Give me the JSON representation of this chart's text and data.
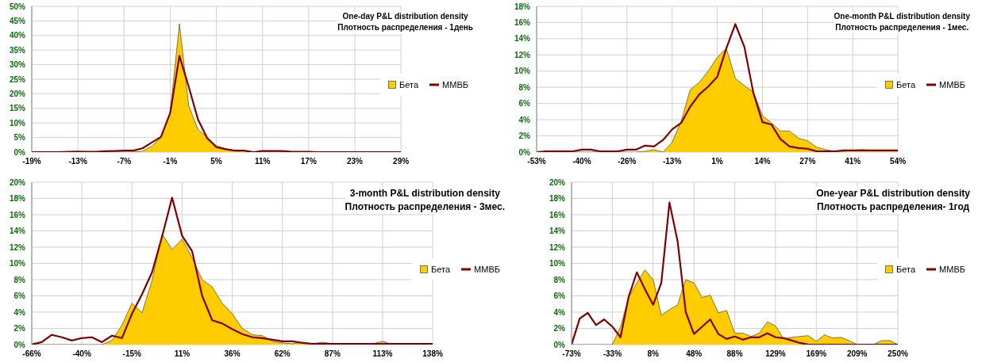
{
  "chart_data": [
    {
      "type": "area",
      "title": "One-day P&L distribution density",
      "subtitle": "Плотность распределения - 1день",
      "categories": [
        "-19%",
        null,
        null,
        null,
        null,
        "-13%",
        null,
        null,
        null,
        null,
        "-7%",
        null,
        null,
        null,
        null,
        "-1%",
        null,
        null,
        null,
        null,
        "5%",
        null,
        null,
        null,
        null,
        "11%",
        null,
        null,
        null,
        null,
        "17%",
        null,
        null,
        null,
        null,
        "23%",
        null,
        null,
        null,
        null,
        "29%"
      ],
      "series": [
        {
          "name": "Бета",
          "type": "area",
          "color": "#ffcc00",
          "values": [
            0,
            0,
            0,
            0,
            0,
            0,
            0,
            0,
            0,
            0,
            0,
            0,
            0.3,
            2,
            5,
            13.5,
            44,
            16,
            7.8,
            5,
            2.2,
            1.2,
            0.5,
            0.5,
            0,
            0,
            0,
            0,
            0,
            0,
            0,
            0,
            0,
            0,
            0,
            0,
            0,
            0,
            0,
            0,
            0
          ]
        },
        {
          "name": "ММВБ",
          "type": "line",
          "color": "#800000",
          "values": [
            0,
            0,
            0,
            0,
            0.1,
            0.2,
            0.1,
            0.1,
            0.3,
            0.4,
            0.5,
            0.5,
            1.3,
            3.3,
            5.2,
            13.5,
            33,
            22.5,
            11.3,
            4.8,
            1.7,
            1,
            0.5,
            0.5,
            0,
            0.4,
            0.4,
            0.4,
            0.2,
            0.1,
            0.1,
            0,
            0,
            0,
            0,
            0,
            0,
            0,
            0,
            0,
            0
          ]
        }
      ],
      "ylim": [
        0,
        50
      ],
      "yticks": [
        {
          "value": 0,
          "label": "0%"
        },
        {
          "value": 5,
          "label": "5%"
        },
        {
          "value": 10,
          "label": "10%"
        },
        {
          "value": 15,
          "label": "15%"
        },
        {
          "value": 20,
          "label": "20%"
        },
        {
          "value": 25,
          "label": "25%"
        },
        {
          "value": 30,
          "label": "30%"
        },
        {
          "value": 35,
          "label": "35%"
        },
        {
          "value": 40,
          "label": "40%"
        },
        {
          "value": 45,
          "label": "45%"
        },
        {
          "value": 50,
          "label": "50%"
        }
      ],
      "grid": true,
      "legend": "right"
    },
    {
      "type": "area",
      "title": "One-month P&L distribution density",
      "subtitle": "Плотность распределения  - 1мес.",
      "categories": [
        "-53%",
        null,
        null,
        null,
        null,
        "-40%",
        null,
        null,
        null,
        null,
        "-26%",
        null,
        null,
        null,
        null,
        "-13%",
        null,
        null,
        null,
        null,
        "1%",
        null,
        null,
        null,
        null,
        "14%",
        null,
        null,
        null,
        null,
        "27%",
        null,
        null,
        null,
        null,
        "41%",
        null,
        null,
        null,
        null,
        "54%"
      ],
      "series": [
        {
          "name": "Бета",
          "type": "area",
          "color": "#ffcc00",
          "values": [
            0,
            0,
            0,
            0,
            0,
            0,
            0,
            0,
            0,
            0,
            0,
            0,
            0.1,
            0.3,
            0,
            1.2,
            3.8,
            7.7,
            8.6,
            10,
            11.7,
            12.8,
            9.1,
            8.2,
            7.4,
            4.5,
            3.6,
            2.6,
            2.6,
            1.7,
            1.4,
            0.6,
            0.3,
            0.1,
            0.1,
            0.2,
            0.3,
            0.2,
            0.2,
            0.2,
            0.2
          ]
        },
        {
          "name": "ММВБ",
          "type": "line",
          "color": "#800000",
          "values": [
            0,
            0.1,
            0.1,
            0.1,
            0.1,
            0.3,
            0.3,
            0.1,
            0.1,
            0.1,
            0.3,
            0.3,
            0.8,
            0.7,
            1.5,
            2.8,
            3.6,
            5.6,
            7.1,
            8.1,
            9.3,
            12.8,
            15.8,
            13,
            7.3,
            3.7,
            3.4,
            1.6,
            0.7,
            0.5,
            0.4,
            0.1,
            0.1,
            0.1,
            0.2,
            0.2,
            0.2,
            0.2,
            0.2,
            0.2,
            0.2
          ]
        }
      ],
      "ylim": [
        0,
        18
      ],
      "yticks": [
        {
          "value": 0,
          "label": "0%"
        },
        {
          "value": 2,
          "label": "2%"
        },
        {
          "value": 4,
          "label": "4%"
        },
        {
          "value": 6,
          "label": "6%"
        },
        {
          "value": 8,
          "label": "8%"
        },
        {
          "value": 10,
          "label": "10%"
        },
        {
          "value": 12,
          "label": "12%"
        },
        {
          "value": 14,
          "label": "14%"
        },
        {
          "value": 16,
          "label": "16%"
        },
        {
          "value": 18,
          "label": "18%"
        }
      ],
      "grid": true,
      "legend": "right"
    },
    {
      "type": "area",
      "title": "3-month P&L distribution density",
      "subtitle": "Плотность распределения  - 3мес.",
      "categories": [
        "-66%",
        null,
        null,
        null,
        null,
        "-40%",
        null,
        null,
        null,
        null,
        "-15%",
        null,
        null,
        null,
        null,
        "11%",
        null,
        null,
        null,
        null,
        "36%",
        null,
        null,
        null,
        null,
        "62%",
        null,
        null,
        null,
        null,
        "87%",
        null,
        null,
        null,
        null,
        "113%",
        null,
        null,
        null,
        null,
        "138%"
      ],
      "series": [
        {
          "name": "Бета",
          "type": "area",
          "color": "#ffcc00",
          "values": [
            0,
            0,
            0,
            0,
            0,
            0,
            0,
            0,
            0.5,
            2.4,
            5.1,
            3.9,
            7.9,
            13.6,
            11.7,
            13,
            10.7,
            8,
            7.1,
            5.1,
            3.8,
            2,
            1.2,
            1.1,
            0.4,
            0.2,
            0.1,
            0.3,
            0.1,
            0.3,
            0.1,
            0,
            0,
            0,
            0.1,
            0.4,
            0,
            0,
            0,
            0,
            0
          ]
        },
        {
          "name": "ММВБ",
          "type": "line",
          "color": "#800000",
          "values": [
            0,
            0.3,
            1.2,
            0.9,
            0.5,
            0.8,
            0.9,
            0.3,
            1.1,
            0.8,
            3.8,
            6.2,
            8.9,
            13.3,
            18.1,
            13.4,
            11.5,
            6,
            3,
            2.6,
            1.9,
            1.3,
            0.9,
            0.8,
            0.6,
            0.4,
            0.4,
            0.2,
            0.1,
            0.1,
            0.1,
            0.1,
            0.1,
            0.1,
            0.1,
            0.1,
            0.1,
            0.1,
            0.1,
            0.1,
            0.1
          ]
        }
      ],
      "ylim": [
        0,
        20
      ],
      "yticks": [
        {
          "value": 0,
          "label": "0%"
        },
        {
          "value": 2,
          "label": "2%"
        },
        {
          "value": 4,
          "label": "4%"
        },
        {
          "value": 6,
          "label": "6%"
        },
        {
          "value": 8,
          "label": "8%"
        },
        {
          "value": 10,
          "label": "10%"
        },
        {
          "value": 12,
          "label": "12%"
        },
        {
          "value": 14,
          "label": "14%"
        },
        {
          "value": 16,
          "label": "16%"
        },
        {
          "value": 18,
          "label": "18%"
        },
        {
          "value": 20,
          "label": "20%"
        }
      ],
      "grid": true,
      "legend": "right"
    },
    {
      "type": "area",
      "title": "One-year P&L distribution density",
      "subtitle": "Плотность распределения- 1год",
      "categories": [
        "-73%",
        null,
        null,
        null,
        null,
        "-33%",
        null,
        null,
        null,
        null,
        "8%",
        null,
        null,
        null,
        null,
        "48%",
        null,
        null,
        null,
        null,
        "88%",
        null,
        null,
        null,
        null,
        "129%",
        null,
        null,
        null,
        null,
        "169%",
        null,
        null,
        null,
        null,
        "209%",
        null,
        null,
        null,
        null,
        "250%"
      ],
      "series": [
        {
          "name": "Бета",
          "type": "area",
          "color": "#ffcc00",
          "values": [
            0,
            0,
            0,
            0,
            0,
            0,
            2.2,
            5.8,
            7.6,
            9.2,
            8,
            3.6,
            4.3,
            4.9,
            8,
            7.6,
            5.8,
            6.1,
            3.9,
            4.2,
            1.4,
            1.4,
            1,
            1.4,
            2.8,
            2.3,
            0.7,
            0.9,
            1,
            1.1,
            0.4,
            1.2,
            0.8,
            0.9,
            0.5,
            0,
            0,
            0,
            0.5,
            0.5,
            0
          ]
        },
        {
          "name": "ММВБ",
          "type": "line",
          "color": "#800000",
          "values": [
            0,
            3.2,
            3.9,
            2.4,
            3.1,
            2.2,
            0.9,
            5.9,
            8.9,
            6.8,
            4.9,
            7.6,
            17.5,
            12.7,
            4,
            1.3,
            2.2,
            3.1,
            1.3,
            0.7,
            1,
            0.6,
            0.9,
            0.9,
            1.4,
            0.9,
            0.8,
            0.5,
            0.2,
            0,
            0,
            0,
            0,
            0,
            0,
            0,
            0,
            0,
            0,
            0,
            0
          ]
        }
      ],
      "ylim": [
        0,
        20
      ],
      "yticks": [
        {
          "value": 0,
          "label": "0%"
        },
        {
          "value": 2,
          "label": "2%"
        },
        {
          "value": 4,
          "label": "4%"
        },
        {
          "value": 6,
          "label": "6%"
        },
        {
          "value": 8,
          "label": "8%"
        },
        {
          "value": 10,
          "label": "10%"
        },
        {
          "value": 12,
          "label": "12%"
        },
        {
          "value": 14,
          "label": "14%"
        },
        {
          "value": 16,
          "label": "16%"
        },
        {
          "value": 18,
          "label": "18%"
        },
        {
          "value": 20,
          "label": "20%"
        }
      ],
      "grid": true,
      "legend": "right"
    }
  ]
}
